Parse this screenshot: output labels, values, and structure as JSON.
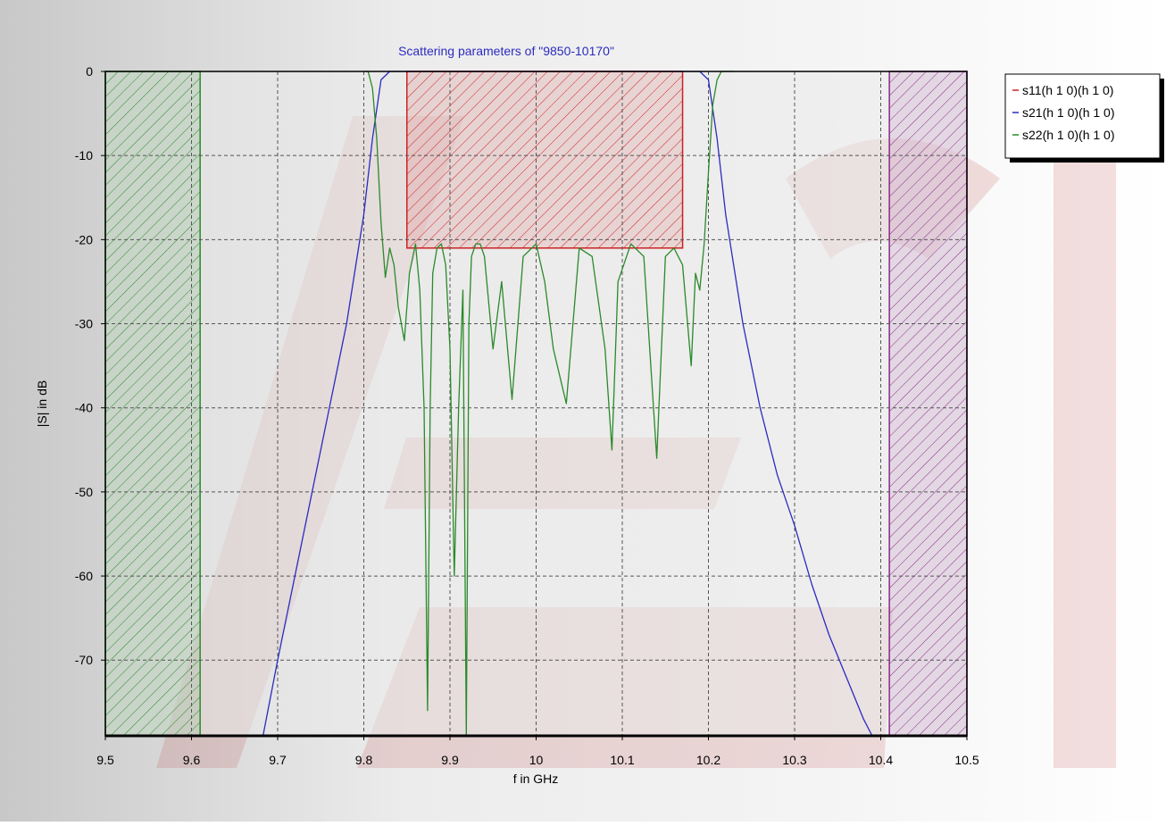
{
  "chart_data": {
    "type": "line",
    "title": "Scattering parameters of \"9850-10170\"",
    "xlabel": "f in GHz",
    "ylabel": "|S| in dB",
    "xlim": [
      9.5,
      10.5
    ],
    "ylim": [
      -79,
      0
    ],
    "xticks": [
      9.5,
      9.6,
      9.7,
      9.8,
      9.9,
      10,
      10.1,
      10.2,
      10.3,
      10.4,
      10.5
    ],
    "xtick_labels": [
      "9.5",
      "9.6",
      "9.7",
      "9.8",
      "9.9",
      "10",
      "10.1",
      "10.2",
      "10.3",
      "10.4",
      "10.5"
    ],
    "yticks": [
      0,
      -10,
      -20,
      -30,
      -40,
      -50,
      -60,
      -70
    ],
    "ytick_labels": [
      "0",
      "-10",
      "-20",
      "-30",
      "-40",
      "-50",
      "-60",
      "-70"
    ],
    "grid": true,
    "legend_position": "right-top",
    "series": [
      {
        "name": "s11(h 1 0)(h 1 0)",
        "color": "#cc2222",
        "x": [],
        "y": []
      },
      {
        "name": "s21(h 1 0)(h 1 0)",
        "color": "#2b2bbf",
        "x": [
          9.683,
          9.7,
          9.72,
          9.74,
          9.76,
          9.78,
          9.8,
          9.81,
          9.82,
          9.83,
          9.85,
          10.17,
          10.19,
          10.2,
          10.21,
          10.22,
          10.24,
          10.26,
          10.28,
          10.3,
          10.32,
          10.34,
          10.36,
          10.38,
          10.39
        ],
        "y": [
          -79,
          -70,
          -60,
          -50,
          -40,
          -30,
          -17,
          -8,
          -1,
          0,
          0,
          0,
          0,
          -1,
          -8,
          -17,
          -30,
          -40,
          -48,
          -54,
          -61,
          -67,
          -72,
          -77,
          -79
        ]
      },
      {
        "name": "s22(h 1 0)(h 1 0)",
        "color": "#2a8a2a",
        "x": [
          9.8,
          9.805,
          9.81,
          9.815,
          9.82,
          9.825,
          9.83,
          9.835,
          9.84,
          9.847,
          9.853,
          9.86,
          9.865,
          9.87,
          9.874,
          9.877,
          9.88,
          9.885,
          9.89,
          9.895,
          9.9,
          9.905,
          9.91,
          9.915,
          9.919,
          9.922,
          9.925,
          9.93,
          9.935,
          9.94,
          9.95,
          9.96,
          9.972,
          9.985,
          10.0,
          10.01,
          10.02,
          10.035,
          10.05,
          10.065,
          10.08,
          10.088,
          10.095,
          10.11,
          10.125,
          10.14,
          10.15,
          10.16,
          10.17,
          10.18,
          10.185,
          10.19,
          10.195,
          10.2,
          10.205,
          10.21,
          10.215,
          10.22,
          10.225,
          10.23
        ],
        "y": [
          0,
          0,
          -2,
          -8,
          -18,
          -24.5,
          -21,
          -23,
          -28,
          -32,
          -24,
          -20.5,
          -26,
          -40,
          -76,
          -40,
          -24,
          -21,
          -20.5,
          -23,
          -33,
          -60,
          -40,
          -26,
          -79,
          -30,
          -22,
          -20.5,
          -20.5,
          -22,
          -33,
          -25,
          -39,
          -22,
          -20.5,
          -25,
          -33,
          -39.5,
          -21,
          -22,
          -33,
          -45,
          -25,
          -20.5,
          -22,
          -46,
          -22,
          -21,
          -23,
          -35,
          -24,
          -26,
          -20.5,
          -12,
          -4,
          -1,
          0,
          0,
          0,
          0
        ]
      }
    ],
    "mask_regions": [
      {
        "kind": "stopband",
        "x": [
          9.5,
          9.61
        ],
        "y_from": -79,
        "y_to": 0,
        "color": "#2a8a2a"
      },
      {
        "kind": "passband",
        "x": [
          9.85,
          10.17
        ],
        "y_from": -21,
        "y_to": 0,
        "color": "#cc2222"
      },
      {
        "kind": "stopband",
        "x": [
          10.41,
          10.5
        ],
        "y_from": -79,
        "y_to": 0,
        "color": "#8a2a8a"
      }
    ]
  }
}
